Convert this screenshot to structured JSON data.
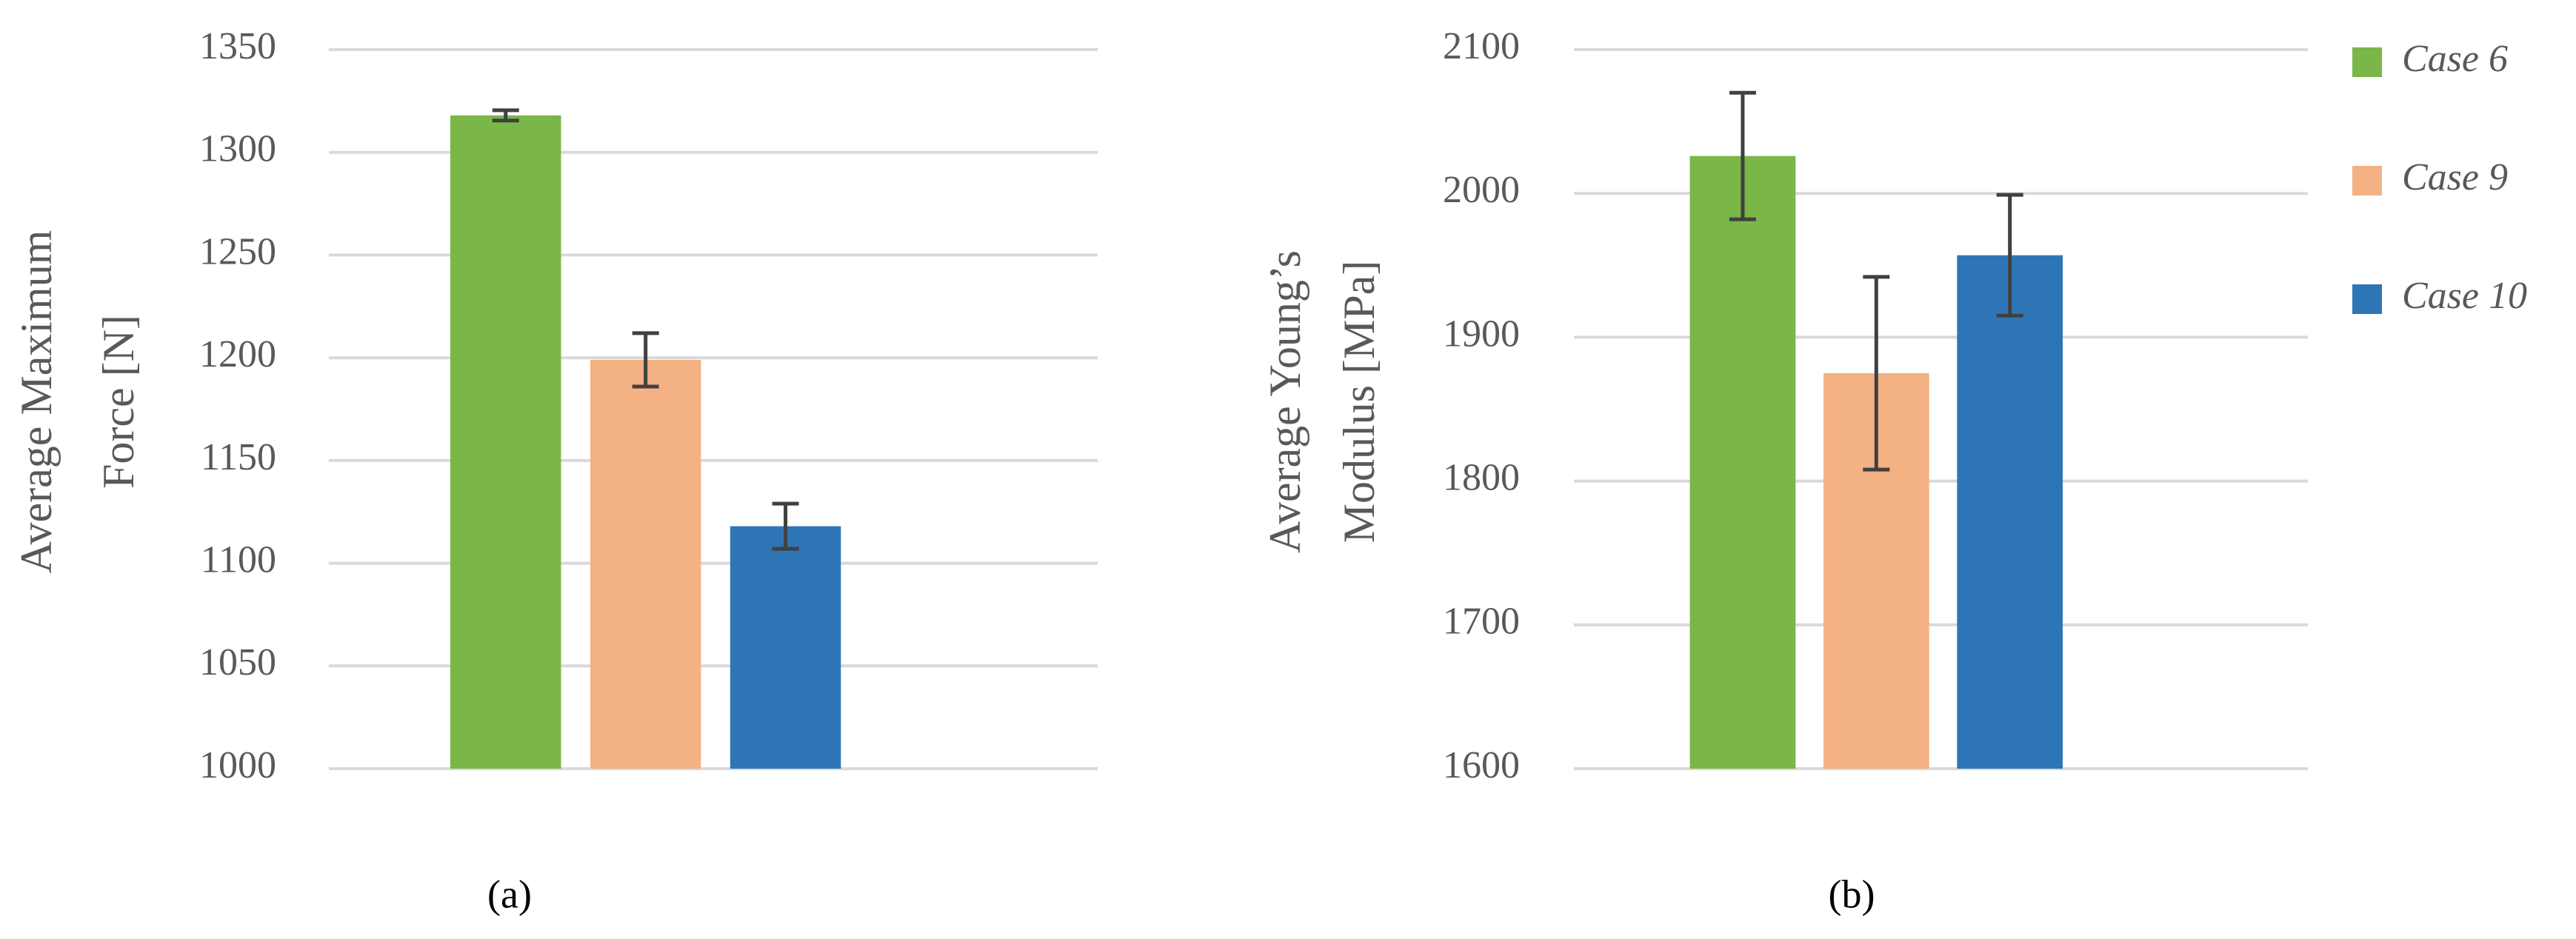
{
  "chart_data": [
    {
      "type": "bar",
      "label": "(a)",
      "ylabel": [
        "Average Maximum",
        "Force [N]"
      ],
      "ylim": [
        1000,
        1350
      ],
      "yticks": [
        1000,
        1050,
        1100,
        1150,
        1200,
        1250,
        1300,
        1350
      ],
      "grid": true,
      "series": [
        {
          "color": "#7ab648",
          "values": [
            1318
          ],
          "errors": [
            2.5
          ]
        },
        {
          "color": "#f4b183",
          "values": [
            1199
          ],
          "errors": [
            13
          ]
        },
        {
          "color": "#2e75b6",
          "values": [
            1118
          ],
          "errors": [
            11
          ]
        }
      ]
    },
    {
      "type": "bar",
      "label": "(b)",
      "ylabel": [
        "Average Young’s",
        "Modulus [MPa]"
      ],
      "ylim": [
        1600,
        2100
      ],
      "yticks": [
        1600,
        1700,
        1800,
        1900,
        2000,
        2100
      ],
      "grid": true,
      "legend": "right",
      "series": [
        {
          "name": "Case 6",
          "color": "#7ab648",
          "values": [
            2026
          ],
          "errors": [
            44
          ]
        },
        {
          "name": "Case 9",
          "color": "#f4b183",
          "values": [
            1875
          ],
          "errors": [
            67
          ]
        },
        {
          "name": "Case 10",
          "color": "#2e75b6",
          "values": [
            1957
          ],
          "errors": [
            42
          ]
        }
      ]
    }
  ]
}
